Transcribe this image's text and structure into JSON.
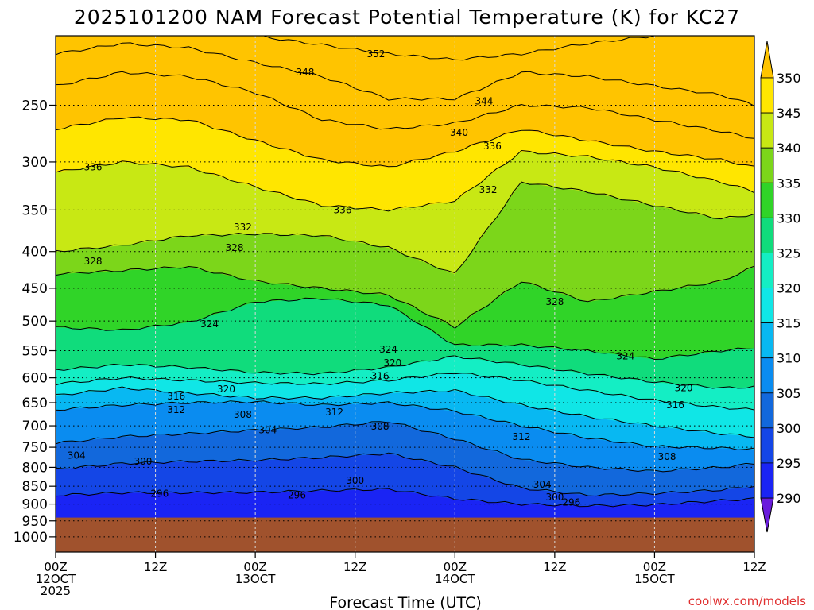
{
  "chart_data": {
    "type": "contour",
    "title": "2025101200 NAM Forecast Potential Temperature (K) for KC27",
    "xlabel": "Forecast Time (UTC)",
    "credit": "coolwx.com/models",
    "y_axis": {
      "quantity": "pressure (hPa)",
      "scale": "log",
      "reversed": true,
      "range": [
        1050,
        200
      ],
      "ticks": [
        250,
        300,
        350,
        400,
        450,
        500,
        550,
        600,
        650,
        700,
        750,
        800,
        850,
        900,
        950,
        1000
      ]
    },
    "x_axis": {
      "range": [
        "2025-10-12T00Z",
        "2025-10-15T12Z"
      ],
      "ticks": [
        {
          "hour": 0,
          "lines": [
            "00Z",
            "12OCT",
            "2025"
          ]
        },
        {
          "hour": 12,
          "lines": [
            "12Z"
          ]
        },
        {
          "hour": 24,
          "lines": [
            "00Z",
            "13OCT"
          ]
        },
        {
          "hour": 36,
          "lines": [
            "12Z"
          ]
        },
        {
          "hour": 48,
          "lines": [
            "00Z",
            "14OCT"
          ]
        },
        {
          "hour": 60,
          "lines": [
            "12Z"
          ]
        },
        {
          "hour": 72,
          "lines": [
            "00Z",
            "15OCT"
          ]
        },
        {
          "hour": 84,
          "lines": [
            "12Z"
          ]
        }
      ]
    },
    "grid": true,
    "surface_pressure_hpa": 940,
    "surface_color": "#a0522d",
    "colorbar": {
      "placement": "right",
      "labels": [
        290,
        295,
        300,
        305,
        310,
        315,
        320,
        325,
        330,
        335,
        340,
        345,
        350
      ],
      "colors": [
        "#6a1cdc",
        "#2a10e8",
        "#1a24f4",
        "#1446e6",
        "#1268dc",
        "#0a8cf0",
        "#08b8f2",
        "#10e6e6",
        "#14eec4",
        "#10dc7c",
        "#30d428",
        "#7cd61a",
        "#c8e814",
        "#ffe600",
        "#ffc400"
      ]
    },
    "isentropes": [
      {
        "k": 296,
        "hours": [
          0,
          8,
          16,
          24,
          32,
          40,
          48,
          56,
          64,
          72,
          80,
          84
        ],
        "p": [
          875,
          868,
          868,
          867,
          862,
          858,
          885,
          900,
          905,
          902,
          890,
          885
        ]
      },
      {
        "k": 300,
        "hours": [
          0,
          8,
          16,
          24,
          32,
          40,
          48,
          56,
          64,
          72,
          80,
          84
        ],
        "p": [
          805,
          790,
          785,
          782,
          775,
          765,
          800,
          855,
          875,
          870,
          860,
          850
        ]
      },
      {
        "k": 304,
        "hours": [
          0,
          8,
          16,
          24,
          32,
          40,
          48,
          56,
          64,
          72,
          80,
          84
        ],
        "p": [
          740,
          725,
          718,
          710,
          703,
          690,
          730,
          780,
          800,
          810,
          800,
          790
        ]
      },
      {
        "k": 308,
        "hours": [
          0,
          8,
          16,
          24,
          32,
          40,
          48,
          56,
          64,
          72,
          80,
          84
        ],
        "p": [
          665,
          655,
          650,
          648,
          655,
          650,
          668,
          700,
          728,
          748,
          752,
          755
        ]
      },
      {
        "k": 312,
        "hours": [
          0,
          8,
          16,
          24,
          32,
          40,
          48,
          56,
          64,
          72,
          80,
          84
        ],
        "p": [
          635,
          620,
          630,
          640,
          640,
          630,
          625,
          655,
          680,
          700,
          718,
          725
        ]
      },
      {
        "k": 316,
        "hours": [
          0,
          8,
          16,
          24,
          32,
          40,
          48,
          56,
          64,
          72,
          80,
          84
        ],
        "p": [
          612,
          600,
          605,
          610,
          612,
          605,
          590,
          605,
          625,
          645,
          660,
          665
        ]
      },
      {
        "k": 320,
        "hours": [
          0,
          8,
          16,
          24,
          32,
          40,
          48,
          56,
          64,
          72,
          80,
          84
        ],
        "p": [
          585,
          575,
          580,
          590,
          592,
          580,
          560,
          575,
          592,
          608,
          620,
          618
        ]
      },
      {
        "k": 324,
        "hours": [
          0,
          8,
          16,
          24,
          32,
          40,
          48,
          56,
          64,
          72,
          80,
          84
        ],
        "p": [
          510,
          515,
          502,
          470,
          465,
          475,
          540,
          540,
          550,
          565,
          550,
          545
        ]
      },
      {
        "k": 328,
        "hours": [
          0,
          8,
          16,
          24,
          32,
          40,
          48,
          56,
          64,
          72,
          80,
          84
        ],
        "p": [
          430,
          425,
          420,
          440,
          450,
          460,
          510,
          440,
          470,
          455,
          440,
          420
        ]
      },
      {
        "k": 332,
        "hours": [
          0,
          8,
          16,
          24,
          32,
          40,
          48,
          56,
          64,
          72,
          80,
          84
        ],
        "p": [
          400,
          392,
          380,
          378,
          380,
          395,
          430,
          320,
          330,
          345,
          360,
          355
        ]
      },
      {
        "k": 336,
        "hours": [
          0,
          8,
          16,
          24,
          32,
          40,
          48,
          56,
          64,
          72,
          80,
          84
        ],
        "p": [
          310,
          300,
          305,
          325,
          345,
          350,
          340,
          290,
          295,
          305,
          320,
          330
        ]
      },
      {
        "k": 340,
        "hours": [
          0,
          8,
          16,
          24,
          32,
          40,
          48,
          56,
          64,
          72,
          80,
          84
        ],
        "p": [
          270,
          260,
          262,
          280,
          298,
          305,
          290,
          270,
          280,
          290,
          298,
          305
        ]
      },
      {
        "k": 344,
        "hours": [
          0,
          8,
          16,
          24,
          32,
          40,
          48,
          56,
          64,
          72,
          80,
          84
        ],
        "p": [
          235,
          225,
          228,
          240,
          262,
          270,
          265,
          250,
          252,
          262,
          272,
          278
        ]
      },
      {
        "k": 348,
        "hours": [
          0,
          8,
          16,
          24,
          32,
          40,
          48,
          56,
          64,
          72,
          80,
          84
        ],
        "p": [
          212,
          205,
          208,
          218,
          228,
          245,
          245,
          225,
          228,
          235,
          242,
          250
        ]
      },
      {
        "k": 352,
        "hours": [
          24,
          32,
          40,
          48,
          56,
          64,
          72
        ],
        "p": [
          200,
          206,
          212,
          216,
          212,
          205,
          200
        ]
      }
    ],
    "contour_labels": [
      {
        "text": "352",
        "hour": 38.5,
        "p": 212
      },
      {
        "text": "348",
        "hour": 30.0,
        "p": 225
      },
      {
        "text": "344",
        "hour": 51.5,
        "p": 247
      },
      {
        "text": "340",
        "hour": 48.5,
        "p": 273
      },
      {
        "text": "336",
        "hour": 52.5,
        "p": 285
      },
      {
        "text": "332",
        "hour": 52.0,
        "p": 328
      },
      {
        "text": "336",
        "hour": 4.5,
        "p": 305
      },
      {
        "text": "336",
        "hour": 34.5,
        "p": 350
      },
      {
        "text": "332",
        "hour": 22.5,
        "p": 370
      },
      {
        "text": "328",
        "hour": 21.5,
        "p": 395
      },
      {
        "text": "328",
        "hour": 4.5,
        "p": 413
      },
      {
        "text": "328",
        "hour": 60.0,
        "p": 470
      },
      {
        "text": "324",
        "hour": 18.5,
        "p": 505
      },
      {
        "text": "324",
        "hour": 40.0,
        "p": 548
      },
      {
        "text": "320",
        "hour": 40.5,
        "p": 572
      },
      {
        "text": "316",
        "hour": 39.0,
        "p": 597
      },
      {
        "text": "324",
        "hour": 68.5,
        "p": 560
      },
      {
        "text": "320",
        "hour": 75.5,
        "p": 620
      },
      {
        "text": "316",
        "hour": 74.5,
        "p": 655
      },
      {
        "text": "312",
        "hour": 56.0,
        "p": 725
      },
      {
        "text": "308",
        "hour": 73.5,
        "p": 773
      },
      {
        "text": "316",
        "hour": 14.5,
        "p": 637
      },
      {
        "text": "320",
        "hour": 20.5,
        "p": 622
      },
      {
        "text": "312",
        "hour": 14.5,
        "p": 665
      },
      {
        "text": "308",
        "hour": 22.5,
        "p": 675
      },
      {
        "text": "304",
        "hour": 25.5,
        "p": 710
      },
      {
        "text": "312",
        "hour": 33.5,
        "p": 670
      },
      {
        "text": "308",
        "hour": 39.0,
        "p": 702
      },
      {
        "text": "304",
        "hour": 2.5,
        "p": 770
      },
      {
        "text": "300",
        "hour": 10.5,
        "p": 785
      },
      {
        "text": "300",
        "hour": 36.0,
        "p": 835
      },
      {
        "text": "304",
        "hour": 58.5,
        "p": 845
      },
      {
        "text": "300",
        "hour": 60.0,
        "p": 880
      },
      {
        "text": "296",
        "hour": 62.0,
        "p": 895
      },
      {
        "text": "296",
        "hour": 12.5,
        "p": 870
      },
      {
        "text": "296",
        "hour": 29.0,
        "p": 875
      }
    ]
  }
}
